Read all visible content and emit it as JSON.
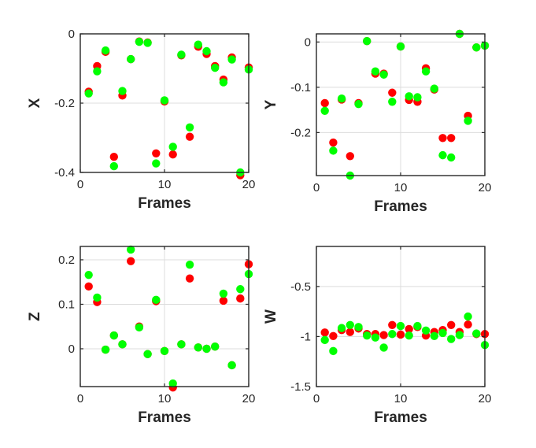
{
  "colors": {
    "series_a": "#ff0000",
    "series_b": "#00ff00",
    "grid": "#dcdcdc",
    "axes": "#262626",
    "background": "#ffffff"
  },
  "chart_data": [
    {
      "type": "scatter",
      "xlabel": "Frames",
      "ylabel": "X",
      "xlim": [
        0,
        20
      ],
      "ylim": [
        -0.4,
        0
      ],
      "xticks": [
        0,
        10,
        20
      ],
      "yticks": [
        0,
        -0.2,
        -0.4
      ],
      "xtick_labels": [
        "0",
        "10",
        "20"
      ],
      "ytick_labels": [
        "0",
        "-0.2",
        "-0.4"
      ],
      "grid": true,
      "series": [
        {
          "color": "#ff0000",
          "points": [
            [
              1,
              -0.167
            ],
            [
              2,
              -0.093
            ],
            [
              3,
              -0.052
            ],
            [
              4,
              -0.355
            ],
            [
              5,
              -0.178
            ],
            [
              6,
              -0.073
            ],
            [
              7,
              -0.022
            ],
            [
              8,
              -0.025
            ],
            [
              9,
              -0.345
            ],
            [
              10,
              -0.195
            ],
            [
              11,
              -0.348
            ],
            [
              12,
              -0.062
            ],
            [
              13,
              -0.297
            ],
            [
              14,
              -0.037
            ],
            [
              15,
              -0.058
            ],
            [
              16,
              -0.093
            ],
            [
              17,
              -0.132
            ],
            [
              18,
              -0.068
            ],
            [
              19,
              -0.408
            ],
            [
              20,
              -0.097
            ]
          ]
        },
        {
          "color": "#00ff00",
          "points": [
            [
              1,
              -0.172
            ],
            [
              2,
              -0.108
            ],
            [
              3,
              -0.048
            ],
            [
              4,
              -0.382
            ],
            [
              5,
              -0.165
            ],
            [
              6,
              -0.073
            ],
            [
              7,
              -0.023
            ],
            [
              8,
              -0.026
            ],
            [
              9,
              -0.374
            ],
            [
              10,
              -0.192
            ],
            [
              11,
              -0.326
            ],
            [
              12,
              -0.06
            ],
            [
              13,
              -0.27
            ],
            [
              14,
              -0.031
            ],
            [
              15,
              -0.05
            ],
            [
              16,
              -0.098
            ],
            [
              17,
              -0.14
            ],
            [
              18,
              -0.074
            ],
            [
              19,
              -0.4
            ],
            [
              20,
              -0.103
            ]
          ]
        }
      ]
    },
    {
      "type": "scatter",
      "xlabel": "Frames",
      "ylabel": "Y",
      "xlim": [
        0,
        20
      ],
      "ylim": [
        -0.295,
        0.018
      ],
      "xticks": [
        0,
        10,
        20
      ],
      "yticks": [
        0,
        -0.1,
        -0.2
      ],
      "xtick_labels": [
        "0",
        "10",
        "20"
      ],
      "ytick_labels": [
        "0",
        "-0.1",
        "-0.2"
      ],
      "grid": true,
      "series": [
        {
          "color": "#ff0000",
          "points": [
            [
              1,
              -0.135
            ],
            [
              2,
              -0.222
            ],
            [
              3,
              -0.127
            ],
            [
              4,
              -0.252
            ],
            [
              5,
              -0.135
            ],
            [
              6,
              0.002
            ],
            [
              7,
              -0.07
            ],
            [
              8,
              -0.07
            ],
            [
              9,
              -0.112
            ],
            [
              10,
              -0.01
            ],
            [
              11,
              -0.128
            ],
            [
              12,
              -0.132
            ],
            [
              13,
              -0.058
            ],
            [
              14,
              -0.105
            ],
            [
              15,
              -0.212
            ],
            [
              16,
              -0.212
            ],
            [
              17,
              0.018
            ],
            [
              18,
              -0.163
            ],
            [
              19,
              -0.012
            ],
            [
              20,
              -0.008
            ]
          ]
        },
        {
          "color": "#00ff00",
          "points": [
            [
              1,
              -0.152
            ],
            [
              2,
              -0.24
            ],
            [
              3,
              -0.125
            ],
            [
              4,
              -0.295
            ],
            [
              5,
              -0.137
            ],
            [
              6,
              0.002
            ],
            [
              7,
              -0.065
            ],
            [
              8,
              -0.072
            ],
            [
              9,
              -0.132
            ],
            [
              10,
              -0.01
            ],
            [
              11,
              -0.12
            ],
            [
              12,
              -0.122
            ],
            [
              13,
              -0.065
            ],
            [
              14,
              -0.103
            ],
            [
              15,
              -0.25
            ],
            [
              16,
              -0.255
            ],
            [
              17,
              0.018
            ],
            [
              18,
              -0.174
            ],
            [
              19,
              -0.012
            ],
            [
              20,
              -0.008
            ]
          ]
        }
      ]
    },
    {
      "type": "scatter",
      "xlabel": "Frames",
      "ylabel": "Z",
      "xlim": [
        0,
        20
      ],
      "ylim": [
        -0.085,
        0.23
      ],
      "xticks": [
        0,
        10,
        20
      ],
      "yticks": [
        0.2,
        0.1,
        0
      ],
      "xtick_labels": [
        "0",
        "10",
        "20"
      ],
      "ytick_labels": [
        "0.2",
        "0.1",
        "0"
      ],
      "grid": true,
      "series": [
        {
          "color": "#ff0000",
          "points": [
            [
              1,
              0.14
            ],
            [
              2,
              0.105
            ],
            [
              3,
              -0.002
            ],
            [
              4,
              0.03
            ],
            [
              5,
              0.01
            ],
            [
              6,
              0.197
            ],
            [
              7,
              0.05
            ],
            [
              8,
              -0.012
            ],
            [
              9,
              0.107
            ],
            [
              10,
              -0.005
            ],
            [
              11,
              -0.087
            ],
            [
              12,
              0.01
            ],
            [
              13,
              0.158
            ],
            [
              14,
              0.003
            ],
            [
              15,
              0.0
            ],
            [
              16,
              0.005
            ],
            [
              17,
              0.108
            ],
            [
              18,
              -0.037
            ],
            [
              19,
              0.113
            ],
            [
              20,
              0.19
            ]
          ]
        },
        {
          "color": "#00ff00",
          "points": [
            [
              1,
              0.166
            ],
            [
              2,
              0.115
            ],
            [
              3,
              -0.002
            ],
            [
              4,
              0.03
            ],
            [
              5,
              0.01
            ],
            [
              6,
              0.223
            ],
            [
              7,
              0.048
            ],
            [
              8,
              -0.012
            ],
            [
              9,
              0.11
            ],
            [
              10,
              -0.005
            ],
            [
              11,
              -0.078
            ],
            [
              12,
              0.01
            ],
            [
              13,
              0.189
            ],
            [
              14,
              0.003
            ],
            [
              15,
              0.0
            ],
            [
              16,
              0.005
            ],
            [
              17,
              0.124
            ],
            [
              18,
              -0.037
            ],
            [
              19,
              0.134
            ],
            [
              20,
              0.168
            ]
          ]
        }
      ]
    },
    {
      "type": "scatter",
      "xlabel": "Frames",
      "ylabel": "W",
      "xlim": [
        0,
        20
      ],
      "ylim": [
        -1.5,
        -0.1
      ],
      "xticks": [
        0,
        10,
        20
      ],
      "yticks": [
        -0.5,
        -1,
        -1.5
      ],
      "xtick_labels": [
        "0",
        "10",
        "20"
      ],
      "ytick_labels": [
        "-0.5",
        "-1",
        "-1.5"
      ],
      "grid": true,
      "series": [
        {
          "color": "#ff0000",
          "points": [
            [
              1,
              -0.96
            ],
            [
              2,
              -0.995
            ],
            [
              3,
              -0.935
            ],
            [
              4,
              -0.955
            ],
            [
              5,
              -0.92
            ],
            [
              6,
              -0.975
            ],
            [
              7,
              -0.975
            ],
            [
              8,
              -0.985
            ],
            [
              9,
              -0.885
            ],
            [
              10,
              -0.98
            ],
            [
              11,
              -0.925
            ],
            [
              12,
              -0.905
            ],
            [
              13,
              -0.99
            ],
            [
              14,
              -0.955
            ],
            [
              15,
              -0.935
            ],
            [
              16,
              -0.885
            ],
            [
              17,
              -0.955
            ],
            [
              18,
              -0.88
            ],
            [
              19,
              -0.975
            ],
            [
              20,
              -0.975
            ]
          ]
        },
        {
          "color": "#00ff00",
          "points": [
            [
              1,
              -1.035
            ],
            [
              2,
              -1.145
            ],
            [
              3,
              -0.915
            ],
            [
              4,
              -0.885
            ],
            [
              5,
              -0.905
            ],
            [
              6,
              -0.99
            ],
            [
              7,
              -1.01
            ],
            [
              8,
              -1.11
            ],
            [
              9,
              -0.975
            ],
            [
              10,
              -0.895
            ],
            [
              11,
              -0.99
            ],
            [
              12,
              -0.895
            ],
            [
              13,
              -0.94
            ],
            [
              14,
              -0.995
            ],
            [
              15,
              -0.965
            ],
            [
              16,
              -1.025
            ],
            [
              17,
              -0.985
            ],
            [
              18,
              -0.8
            ],
            [
              19,
              -0.97
            ],
            [
              20,
              -1.085
            ]
          ]
        }
      ]
    }
  ]
}
